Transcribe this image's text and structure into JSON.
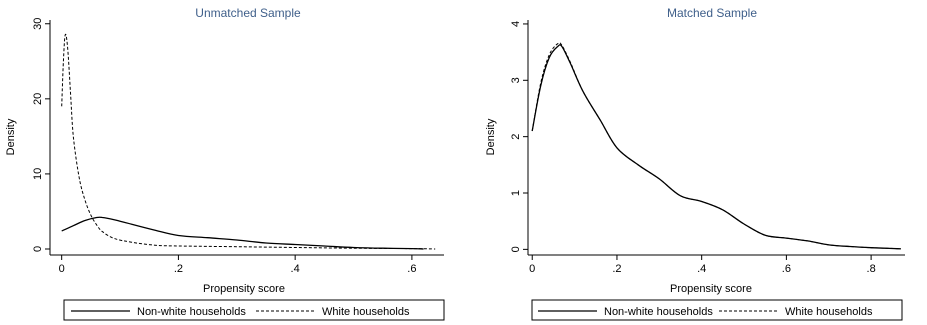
{
  "chart_data": [
    {
      "type": "line",
      "title": "Unmatched Sample",
      "xlabel": "Propensity score",
      "ylabel": "Density",
      "xlim": [
        -0.02,
        0.655
      ],
      "ylim": [
        -0.8,
        30.5
      ],
      "xticks": [
        {
          "v": 0,
          "label": "0"
        },
        {
          "v": 0.2,
          "label": ".2"
        },
        {
          "v": 0.4,
          "label": ".4"
        },
        {
          "v": 0.6,
          "label": ".6"
        }
      ],
      "yticks": [
        {
          "v": 0,
          "label": "0"
        },
        {
          "v": 10,
          "label": "10"
        },
        {
          "v": 20,
          "label": "20"
        },
        {
          "v": 30,
          "label": "30"
        }
      ],
      "grid": false,
      "legend_position": "bottom",
      "series": [
        {
          "name": "Non-white households",
          "style": "solid",
          "x": [
            0.0,
            0.02,
            0.04,
            0.06,
            0.07,
            0.09,
            0.12,
            0.16,
            0.2,
            0.25,
            0.3,
            0.35,
            0.4,
            0.45,
            0.5,
            0.55,
            0.6,
            0.62
          ],
          "y": [
            2.4,
            3.1,
            3.8,
            4.2,
            4.2,
            3.9,
            3.3,
            2.5,
            1.8,
            1.5,
            1.2,
            0.8,
            0.6,
            0.4,
            0.2,
            0.1,
            0.05,
            0.0
          ]
        },
        {
          "name": "White households",
          "style": "dashed",
          "x": [
            0.0,
            0.003,
            0.006,
            0.01,
            0.015,
            0.02,
            0.03,
            0.04,
            0.05,
            0.06,
            0.07,
            0.09,
            0.12,
            0.16,
            0.2,
            0.3,
            0.4,
            0.5,
            0.6,
            0.64
          ],
          "y": [
            19.0,
            25.0,
            28.5,
            27.0,
            21.0,
            15.0,
            9.5,
            6.5,
            4.5,
            3.2,
            2.3,
            1.4,
            0.9,
            0.5,
            0.4,
            0.3,
            0.2,
            0.1,
            0.05,
            0.0
          ]
        }
      ]
    },
    {
      "type": "line",
      "title": "Matched Sample",
      "xlabel": "Propensity score",
      "ylabel": "Density",
      "xlim": [
        -0.01,
        0.88
      ],
      "ylim": [
        -0.1,
        4.07
      ],
      "xticks": [
        {
          "v": 0,
          "label": "0"
        },
        {
          "v": 0.2,
          "label": ".2"
        },
        {
          "v": 0.4,
          "label": ".4"
        },
        {
          "v": 0.6,
          "label": ".6"
        },
        {
          "v": 0.8,
          "label": ".8"
        }
      ],
      "yticks": [
        {
          "v": 0,
          "label": "0"
        },
        {
          "v": 1,
          "label": "1"
        },
        {
          "v": 2,
          "label": "2"
        },
        {
          "v": 3,
          "label": "3"
        },
        {
          "v": 4,
          "label": "4"
        }
      ],
      "grid": false,
      "legend_position": "bottom",
      "series": [
        {
          "name": "Non-white households",
          "style": "solid",
          "x": [
            0.0,
            0.02,
            0.04,
            0.06,
            0.07,
            0.09,
            0.12,
            0.16,
            0.2,
            0.25,
            0.3,
            0.35,
            0.4,
            0.45,
            0.5,
            0.55,
            0.6,
            0.65,
            0.7,
            0.75,
            0.8,
            0.87
          ],
          "y": [
            2.1,
            2.9,
            3.4,
            3.6,
            3.6,
            3.3,
            2.8,
            2.3,
            1.8,
            1.5,
            1.25,
            0.95,
            0.85,
            0.7,
            0.45,
            0.25,
            0.2,
            0.15,
            0.08,
            0.05,
            0.03,
            0.01
          ]
        },
        {
          "name": "White households",
          "style": "dashed",
          "x": [
            0.0,
            0.02,
            0.04,
            0.06,
            0.07,
            0.09,
            0.12,
            0.16,
            0.2,
            0.25,
            0.3,
            0.35,
            0.4,
            0.45,
            0.5,
            0.55,
            0.6,
            0.65,
            0.7,
            0.75,
            0.8,
            0.87
          ],
          "y": [
            2.1,
            2.95,
            3.45,
            3.65,
            3.62,
            3.32,
            2.8,
            2.3,
            1.8,
            1.5,
            1.25,
            0.95,
            0.85,
            0.7,
            0.45,
            0.25,
            0.2,
            0.15,
            0.08,
            0.05,
            0.03,
            0.01
          ]
        }
      ]
    }
  ]
}
